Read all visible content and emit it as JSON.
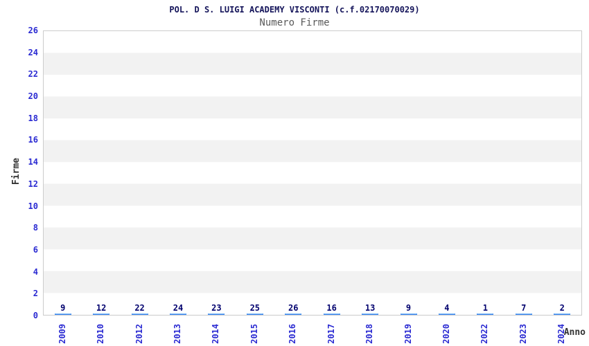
{
  "chart_data": {
    "type": "bar",
    "title": "POL. D S. LUIGI ACADEMY VISCONTI (c.f.02170070029)",
    "subtitle": "Numero Firme",
    "xlabel": "Anno",
    "ylabel": "Firme",
    "categories": [
      "2009",
      "2010",
      "2012",
      "2013",
      "2014",
      "2015",
      "2016",
      "2017",
      "2018",
      "2019",
      "2020",
      "2022",
      "2023",
      "2024"
    ],
    "values": [
      9,
      12,
      22,
      24,
      23,
      25,
      26,
      16,
      13,
      9,
      4,
      1,
      7,
      2
    ],
    "ylim": [
      0,
      26
    ],
    "ytick_step": 2,
    "grid": "alternating horizontal bands of 2 units, white and light gray",
    "legend": "none",
    "colors": {
      "title_color": "#14145a",
      "subtitle_color": "#595959",
      "tick_color": "#2a2ad2",
      "value_label_color": "#00006e",
      "axis_title_color": "#333333",
      "bar_dark": "#15157a",
      "bar_light": "#aab3d9",
      "bar_border": "#3f87f0",
      "bar_border_top": "#79b7f5",
      "band_gray": "#f2f2f2",
      "plot_border": "#cccccc"
    }
  }
}
